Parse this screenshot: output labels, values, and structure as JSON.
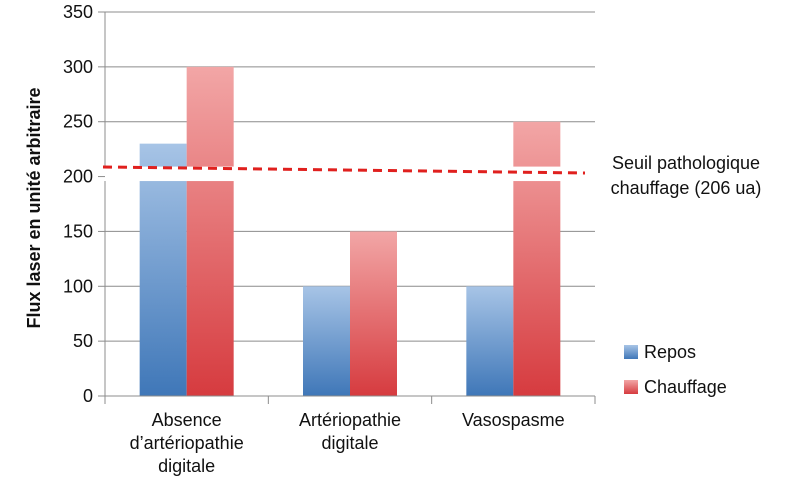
{
  "chart_data": {
    "type": "bar",
    "title": "",
    "xlabel": "",
    "ylabel": "Flux laser en unité arbitraire",
    "ylim": [
      0,
      350
    ],
    "yticks": [
      0,
      50,
      100,
      150,
      200,
      250,
      300,
      350
    ],
    "grid": true,
    "categories": [
      [
        "Absence",
        "d’artériopathie",
        "digitale"
      ],
      [
        "Artériopathie",
        "digitale"
      ],
      [
        "Vasospasme"
      ]
    ],
    "series": [
      {
        "name": "Repos",
        "values": [
          230,
          100,
          100
        ],
        "color": "#4f81bd"
      },
      {
        "name": "Chauffage",
        "values": [
          300,
          150,
          250
        ],
        "color": "#d9464a"
      }
    ],
    "axis_break_range": [
      195,
      210
    ],
    "threshold": {
      "value": 206,
      "label": [
        "Seuil pathologique",
        "chauffage (206 ua)"
      ],
      "color": "#e0201e"
    },
    "legend_position": "right"
  }
}
